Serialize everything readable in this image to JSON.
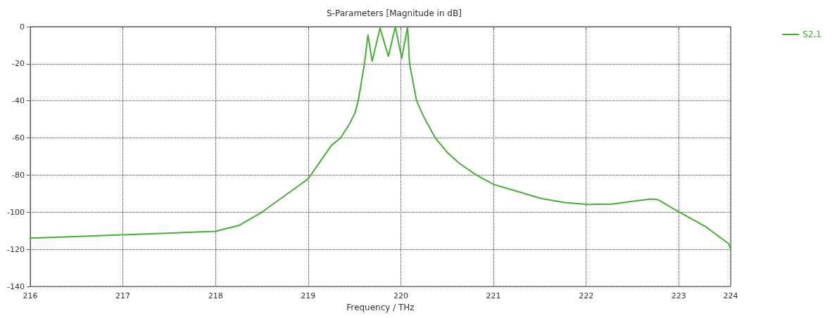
{
  "chart_data": {
    "type": "line",
    "title": "S-Parameters [Magnitude in dB]",
    "xlabel": "Frequency / THz",
    "xlim": [
      216,
      223.56
    ],
    "ylim": [
      -140,
      0
    ],
    "xticks": [
      216,
      217,
      218,
      219,
      220,
      221,
      222,
      223,
      {
        "value": 223.56,
        "label": "224"
      }
    ],
    "yticks": [
      -140,
      -120,
      -100,
      -80,
      -60,
      -40,
      -20,
      0
    ],
    "grid": true,
    "legend": "top right",
    "marker": "none",
    "line_style": "solid",
    "series": [
      {
        "name": "S2,1",
        "color": "#44b033",
        "x": [
          216,
          217,
          218,
          218.25,
          218.5,
          218.75,
          219,
          219.25,
          219.35,
          219.45,
          219.506,
          219.54,
          219.607,
          219.645,
          219.69,
          219.776,
          219.866,
          219.94,
          220.01,
          220.073,
          220.094,
          220.17,
          220.245,
          220.372,
          220.5,
          220.63,
          220.816,
          221.0,
          221.26,
          221.513,
          221.77,
          222.02,
          222.28,
          222.53,
          222.7,
          222.78,
          222.907,
          223.01,
          223.29,
          223.54,
          223.56
        ],
        "values": [
          -114,
          -112.2,
          -110.3,
          -107.2,
          -100,
          -91,
          -82,
          -64,
          -60,
          -52,
          -46.4,
          -40,
          -20,
          -4.5,
          -18.6,
          -0.8,
          -16,
          0,
          -17,
          0,
          -19.8,
          -40,
          -48.3,
          -60,
          -67.7,
          -73.6,
          -80,
          -85,
          -88.8,
          -92.6,
          -94.8,
          -95.8,
          -95.6,
          -93.9,
          -92.9,
          -93.3,
          -97.1,
          -100,
          -107.8,
          -117,
          -120
        ]
      }
    ]
  }
}
